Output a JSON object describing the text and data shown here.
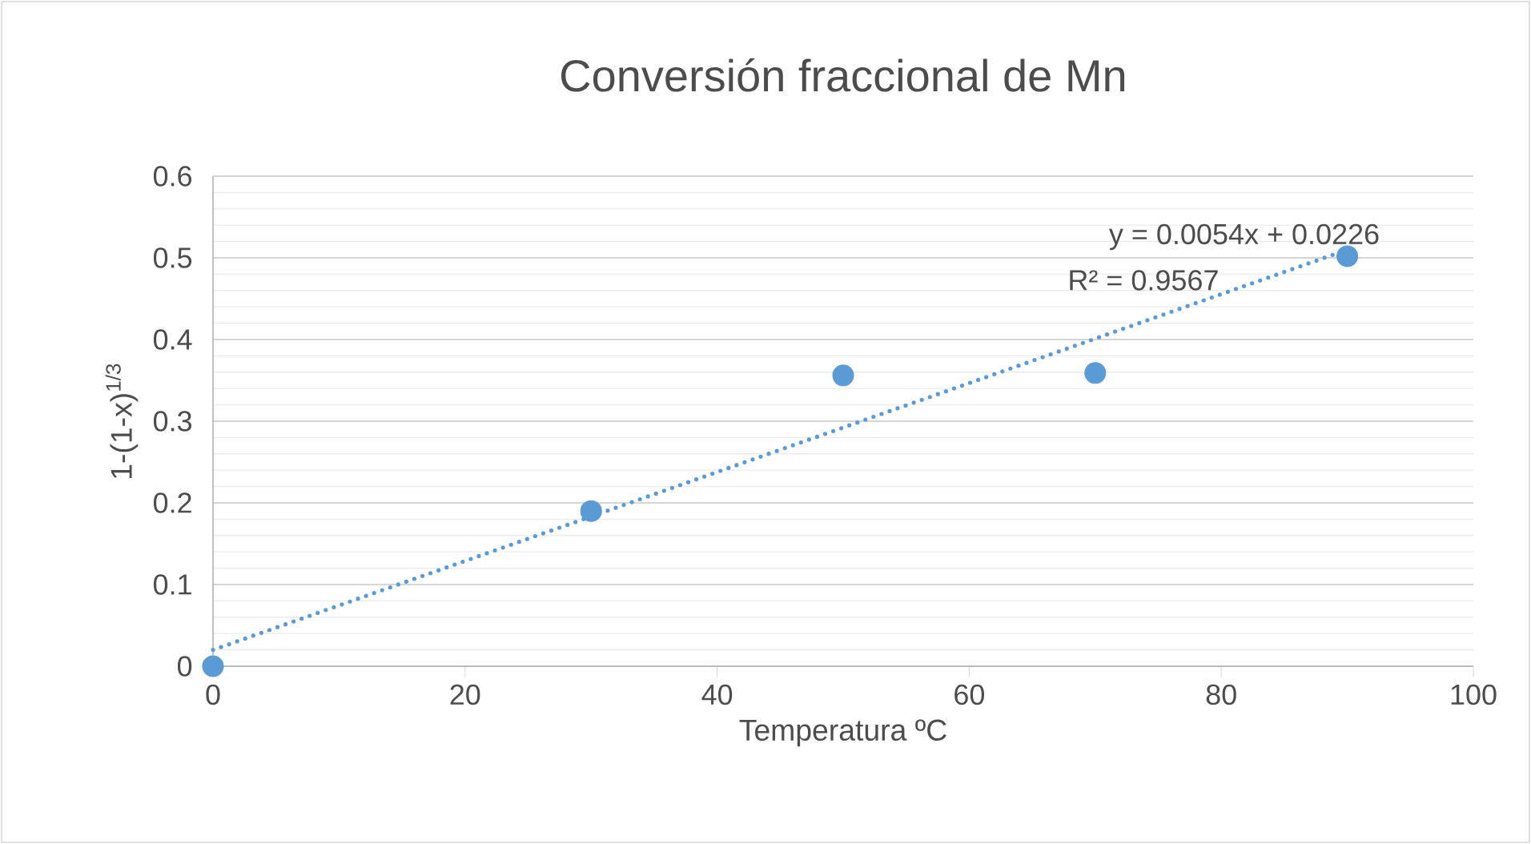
{
  "chart_data": {
    "type": "scatter",
    "title": "Conversión fraccional de Mn",
    "xlabel": "Temperatura ºC",
    "ylabel": "1-(1-x)$^{1/3}$",
    "x": [
      0,
      30,
      50,
      70,
      90
    ],
    "series": [
      {
        "color": "#5b9bd5",
        "values": [
          0,
          0.19,
          0.356,
          0.359,
          0.502
        ],
        "marker": "circle"
      },
      {
        "type": "line",
        "color": "#5b9bd5",
        "x": [
          0,
          90
        ],
        "values": [
          0.02,
          0.51
        ],
        "line_style": "dotted",
        "marker": "none"
      }
    ],
    "annotations": [
      "y = 0.0054x + 0.0226",
      "R² = 0.9567"
    ],
    "xlim": [
      0,
      100
    ],
    "xticks": [
      0,
      20,
      40,
      60,
      80,
      100
    ],
    "ylim": [
      0,
      0.6
    ],
    "yticks": [
      0,
      0.1,
      0.2,
      0.3,
      0.4,
      0.5,
      0.6
    ],
    "grid": "y",
    "legend": false
  }
}
